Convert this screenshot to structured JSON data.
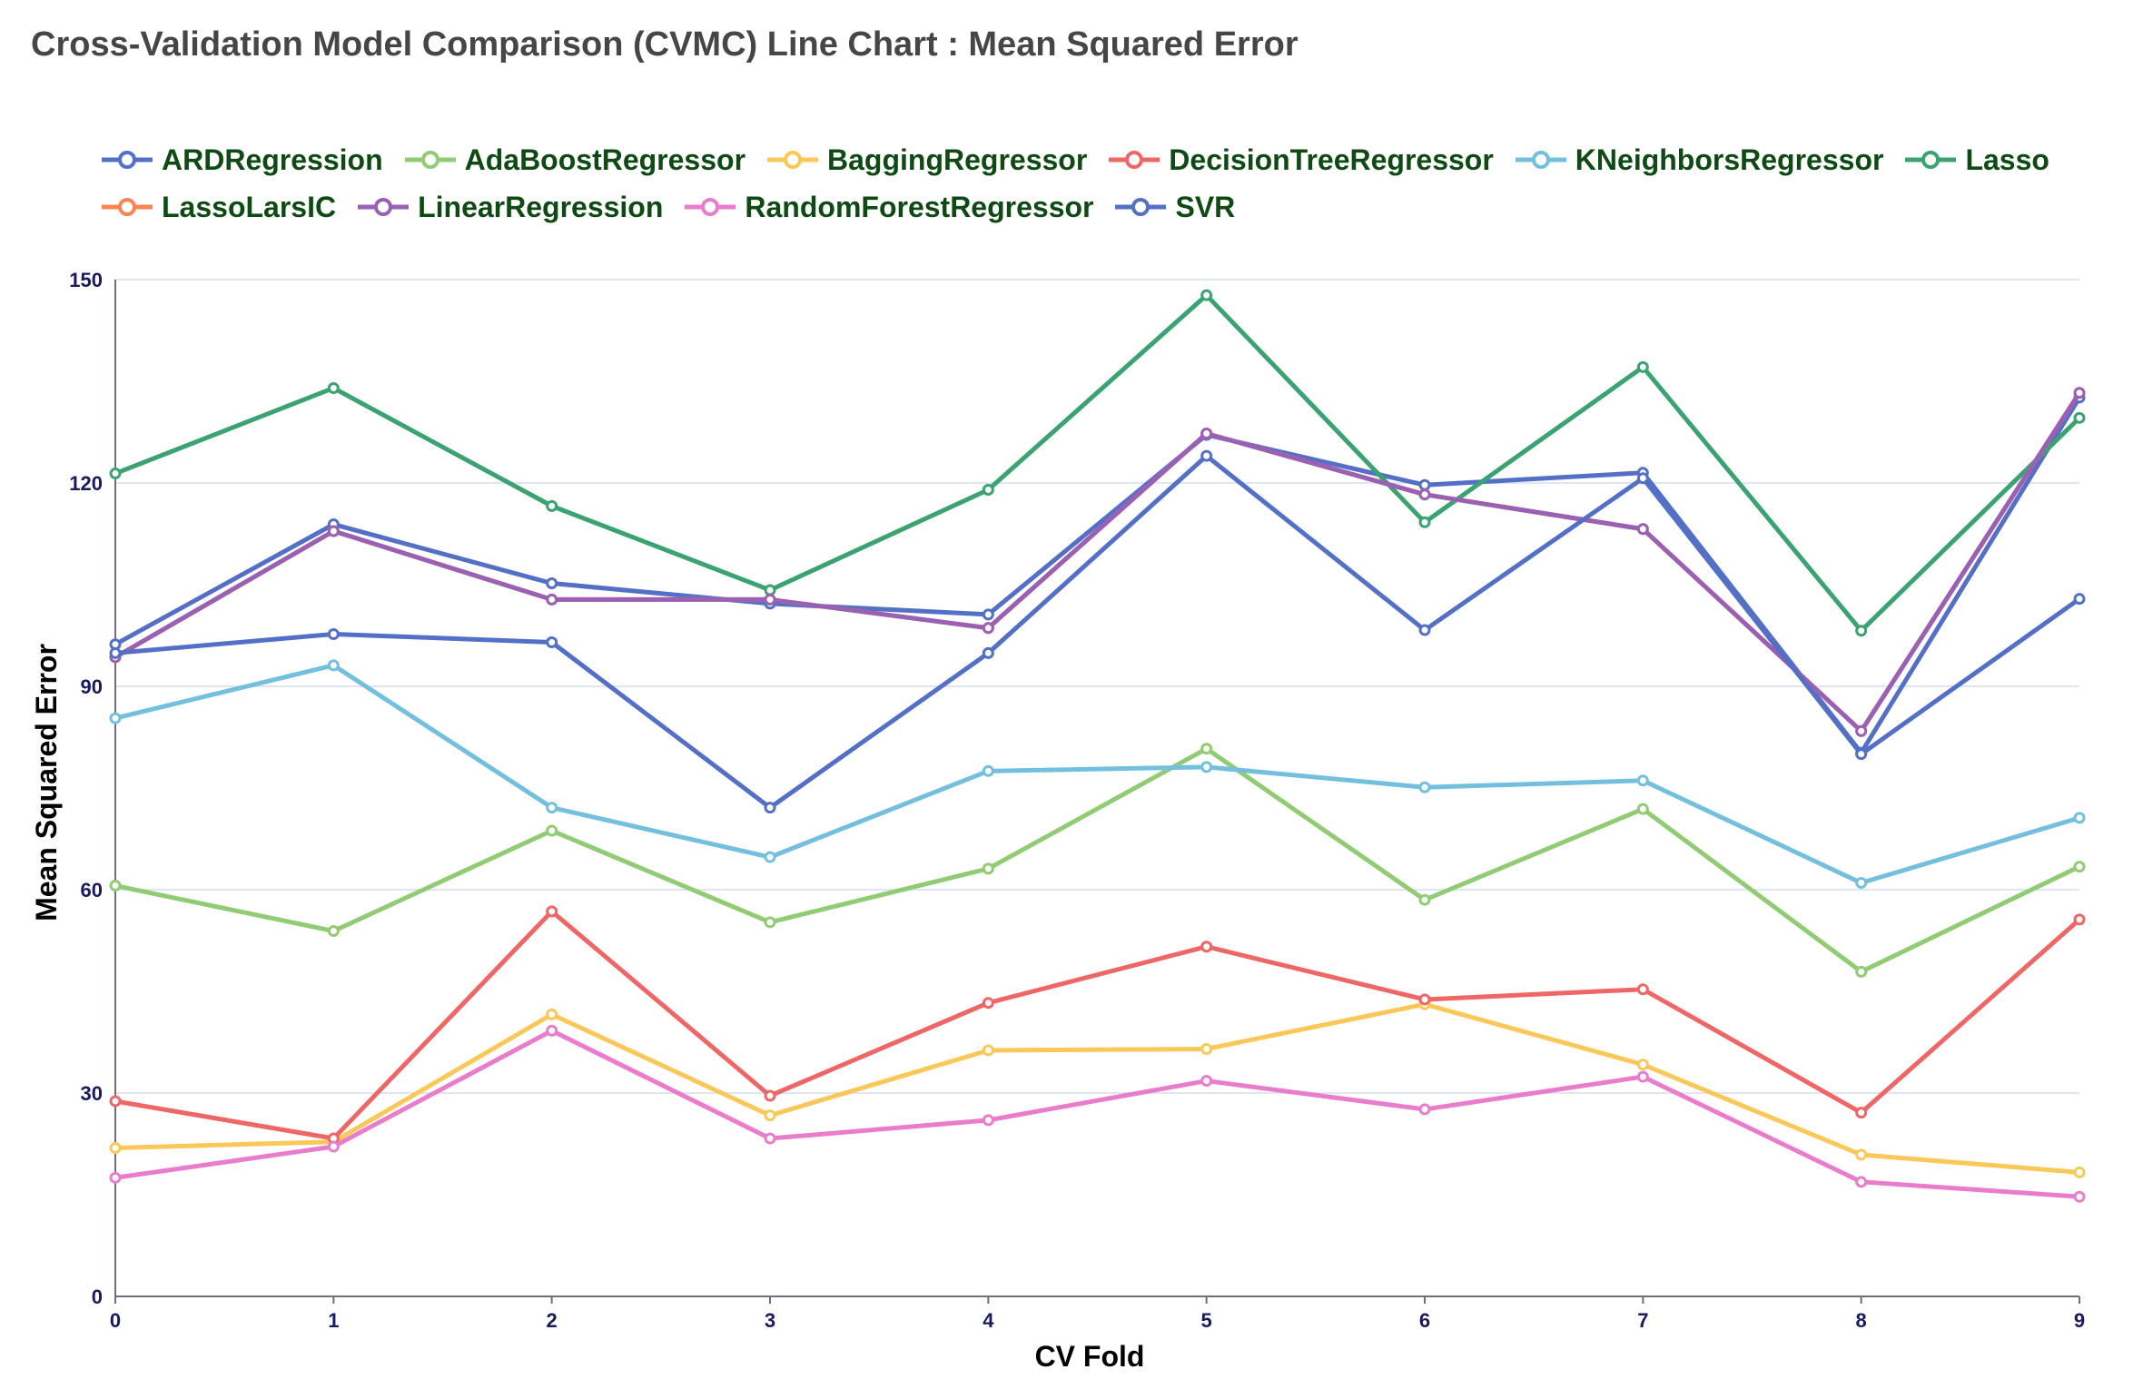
{
  "chart_data": {
    "type": "line",
    "title": "Cross-Validation Model Comparison (CVMC) Line Chart : Mean Squared Error",
    "xlabel": "CV Fold",
    "ylabel": "Mean Squared Error",
    "x": [
      0,
      1,
      2,
      3,
      4,
      5,
      6,
      7,
      8,
      9
    ],
    "ylim": [
      0,
      150
    ],
    "yticks": [
      0,
      30,
      60,
      90,
      120,
      150
    ],
    "grid": "horizontal",
    "legend_position": "top",
    "series": [
      {
        "name": "ARDRegression",
        "color": "#5470c6",
        "values": [
          96.2,
          113.9,
          105.2,
          102.2,
          100.6,
          127.1,
          119.7,
          121.5,
          80.2,
          132.6
        ]
      },
      {
        "name": "AdaBoostRegressor",
        "color": "#91cc75",
        "values": [
          60.6,
          53.9,
          68.7,
          55.2,
          63.1,
          80.8,
          58.5,
          71.9,
          47.9,
          63.4
        ]
      },
      {
        "name": "BaggingRegressor",
        "color": "#fac858",
        "values": [
          21.9,
          22.8,
          41.6,
          26.7,
          36.3,
          36.5,
          43.1,
          34.2,
          20.9,
          18.3
        ]
      },
      {
        "name": "DecisionTreeRegressor",
        "color": "#ee6666",
        "values": [
          28.8,
          23.3,
          56.8,
          29.6,
          43.3,
          51.6,
          43.8,
          45.3,
          27.1,
          55.6
        ]
      },
      {
        "name": "KNeighborsRegressor",
        "color": "#73c0de",
        "values": [
          85.3,
          93.1,
          72.1,
          64.8,
          77.5,
          78.1,
          75.1,
          76.1,
          61.0,
          70.6
        ]
      },
      {
        "name": "Lasso",
        "color": "#3ba272",
        "values": [
          121.4,
          134.0,
          116.6,
          104.2,
          119.0,
          147.7,
          114.2,
          137.1,
          98.2,
          129.6
        ]
      },
      {
        "name": "LassoLarsIC",
        "color": "#fc8452",
        "values": [
          94.3,
          112.9,
          102.8,
          102.8,
          98.6,
          127.3,
          118.3,
          113.2,
          83.4,
          133.3
        ]
      },
      {
        "name": "LinearRegression",
        "color": "#9a60b4",
        "values": [
          94.3,
          112.9,
          102.8,
          102.8,
          98.6,
          127.3,
          118.3,
          113.2,
          83.4,
          133.3
        ]
      },
      {
        "name": "RandomForestRegressor",
        "color": "#ea7ccc",
        "values": [
          17.5,
          22.1,
          39.2,
          23.3,
          26.0,
          31.8,
          27.6,
          32.4,
          16.9,
          14.7
        ]
      },
      {
        "name": "SVR",
        "color": "#5470c6",
        "values": [
          94.9,
          97.7,
          96.5,
          72.1,
          94.9,
          124.0,
          98.3,
          120.7,
          80.0,
          102.9
        ]
      }
    ]
  }
}
